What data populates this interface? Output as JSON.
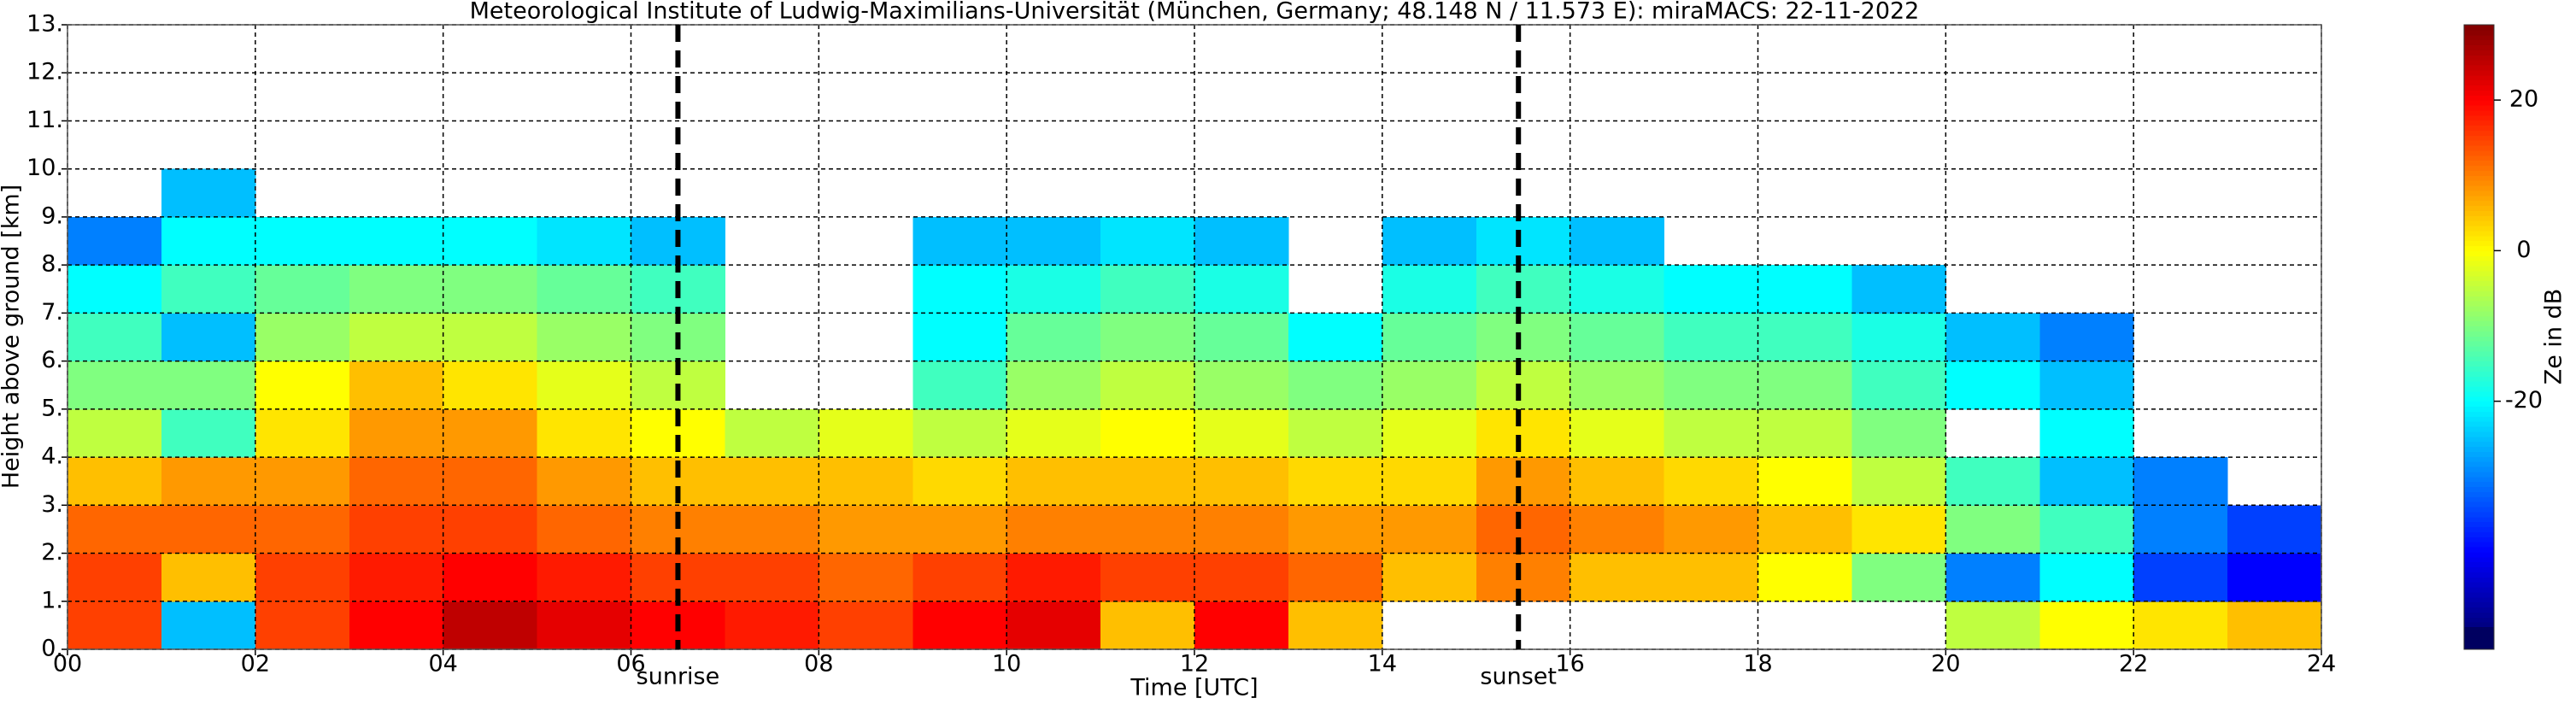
{
  "chart_data": {
    "type": "heatmap",
    "title": "Meteorological Institute of Ludwig-Maximilians-Universität (München, Germany; 48.148 N / 11.573 E):    miraMACS: 22-11-2022",
    "x_label": "Time [UTC]",
    "y_label": "Height above ground [km]",
    "colorbar_label": "Ze in dB",
    "colormap": "jet",
    "grid": true,
    "xlim": [
      0,
      24
    ],
    "ylim": [
      0,
      13
    ],
    "clim": [
      -50,
      30
    ],
    "xticks": [
      {
        "value": 0,
        "label": "00"
      },
      {
        "value": 2,
        "label": "02"
      },
      {
        "value": 4,
        "label": "04"
      },
      {
        "value": 6,
        "label": "06"
      },
      {
        "value": 8,
        "label": "08"
      },
      {
        "value": 10,
        "label": "10"
      },
      {
        "value": 12,
        "label": "12"
      },
      {
        "value": 14,
        "label": "14"
      },
      {
        "value": 16,
        "label": "16"
      },
      {
        "value": 18,
        "label": "18"
      },
      {
        "value": 20,
        "label": "20"
      },
      {
        "value": 22,
        "label": "22"
      },
      {
        "value": 24,
        "label": "24"
      }
    ],
    "yticks": [
      {
        "value": 0,
        "label": "0."
      },
      {
        "value": 1,
        "label": "1."
      },
      {
        "value": 2,
        "label": "2."
      },
      {
        "value": 3,
        "label": "3."
      },
      {
        "value": 4,
        "label": "4."
      },
      {
        "value": 5,
        "label": "5."
      },
      {
        "value": 6,
        "label": "6."
      },
      {
        "value": 7,
        "label": "7."
      },
      {
        "value": 8,
        "label": "8."
      },
      {
        "value": 9,
        "label": "9."
      },
      {
        "value": 10,
        "label": "10."
      },
      {
        "value": 11,
        "label": "11."
      },
      {
        "value": 12,
        "label": "12."
      },
      {
        "value": 13,
        "label": "13."
      }
    ],
    "cticks": [
      -20,
      0,
      20
    ],
    "xbins": [
      0,
      1,
      2,
      3,
      4,
      5,
      6,
      7,
      8,
      9,
      10,
      11,
      12,
      13,
      14,
      15,
      16,
      17,
      18,
      19,
      20,
      21,
      22,
      23,
      24
    ],
    "ybins": [
      0,
      1,
      2,
      3,
      4,
      5,
      6,
      7,
      8,
      9,
      10
    ],
    "z": [
      [
        15,
        15,
        12,
        5,
        -5,
        -10,
        -15,
        -20,
        -30,
        null
      ],
      [
        -25,
        5,
        12,
        8,
        -15,
        -10,
        -25,
        -15,
        -20,
        -25
      ],
      [
        15,
        15,
        12,
        8,
        2,
        0,
        -8,
        -12,
        -20,
        null
      ],
      [
        20,
        18,
        15,
        12,
        8,
        5,
        -5,
        -10,
        -20,
        null
      ],
      [
        25,
        20,
        15,
        12,
        8,
        2,
        -5,
        -10,
        -20,
        null
      ],
      [
        22,
        18,
        12,
        8,
        2,
        -2,
        -8,
        -12,
        -22,
        null
      ],
      [
        20,
        15,
        10,
        5,
        0,
        -5,
        -10,
        -15,
        -25,
        null
      ],
      [
        18,
        15,
        10,
        5,
        -5,
        null,
        null,
        null,
        null,
        null
      ],
      [
        15,
        12,
        8,
        5,
        -2,
        null,
        null,
        null,
        null,
        null
      ],
      [
        20,
        15,
        8,
        3,
        -5,
        -15,
        -20,
        -20,
        -25,
        null
      ],
      [
        22,
        18,
        10,
        5,
        -2,
        -8,
        -12,
        -18,
        -25,
        null
      ],
      [
        5,
        15,
        10,
        5,
        0,
        -5,
        -10,
        -15,
        -22,
        null
      ],
      [
        20,
        15,
        10,
        5,
        -2,
        -8,
        -12,
        -18,
        -25,
        null
      ],
      [
        5,
        12,
        8,
        3,
        -5,
        -10,
        -20,
        null,
        null,
        null
      ],
      [
        null,
        5,
        8,
        3,
        -2,
        -8,
        -12,
        -18,
        -25,
        null
      ],
      [
        null,
        10,
        12,
        8,
        2,
        -5,
        -10,
        -15,
        -22,
        null
      ],
      [
        null,
        5,
        10,
        5,
        -2,
        -8,
        -12,
        -18,
        -25,
        null
      ],
      [
        null,
        5,
        8,
        3,
        -5,
        -10,
        -15,
        -20,
        null,
        null
      ],
      [
        null,
        0,
        5,
        0,
        -5,
        -10,
        -15,
        -20,
        null,
        null
      ],
      [
        null,
        -10,
        2,
        -5,
        -10,
        -15,
        -18,
        -25,
        null,
        null
      ],
      [
        -5,
        -30,
        -10,
        -15,
        null,
        -20,
        -25,
        null,
        null,
        null
      ],
      [
        0,
        -20,
        -15,
        -25,
        -20,
        -25,
        -30,
        null,
        null,
        null
      ],
      [
        2,
        -35,
        -30,
        -30,
        null,
        null,
        null,
        null,
        null,
        null
      ],
      [
        5,
        -40,
        -35,
        null,
        null,
        null,
        null,
        null,
        null,
        null
      ]
    ],
    "annotations": [
      {
        "text": "sunrise",
        "x": 6.5
      },
      {
        "text": "sunset",
        "x": 15.45
      }
    ]
  }
}
